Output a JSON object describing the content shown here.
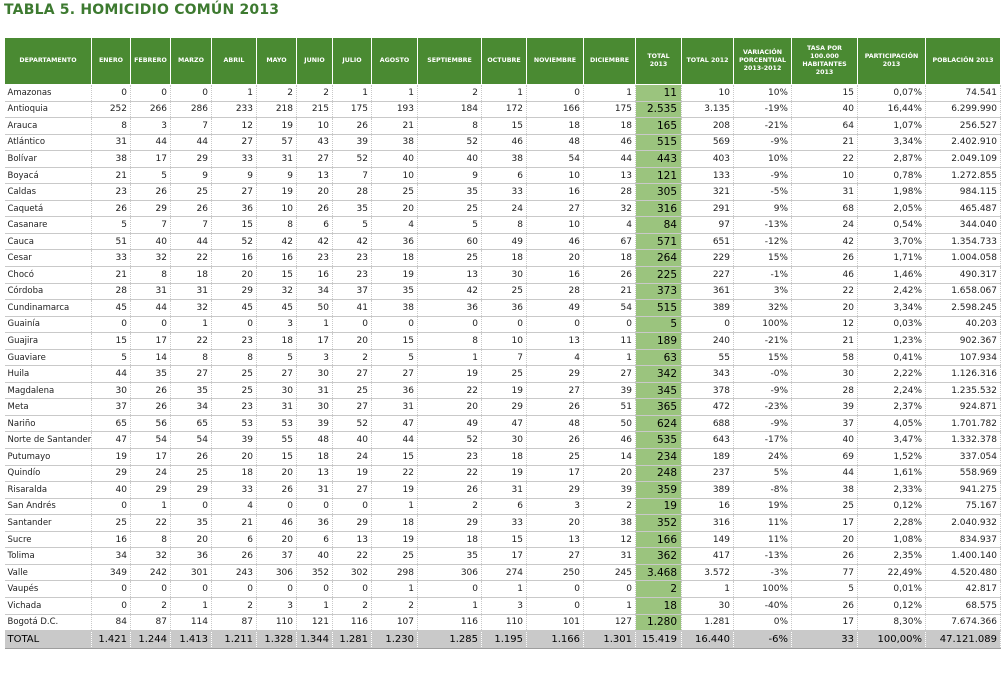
{
  "title": {
    "prefix": "TABLA 5.",
    "text": "HOMICIDIO COMÚN 2013"
  },
  "headers": [
    "DEPARTAMENTO",
    "ENERO",
    "FEBRERO",
    "MARZO",
    "ABRIL",
    "MAYO",
    "JUNIO",
    "JULIO",
    "AGOSTO",
    "SEPTIEMBRE",
    "OCTUBRE",
    "NOVIEMBRE",
    "DICIEMBRE",
    "TOTAL 2013",
    "TOTAL 2012",
    "VARIACIÓN PORCENTUAL 2013-2012",
    "TASA POR 100.000 HABITANTES 2013",
    "PARTICIPACIÓN 2013",
    "POBLACIÓN 2013"
  ],
  "rows": [
    [
      "Amazonas",
      "0",
      "0",
      "0",
      "1",
      "2",
      "2",
      "1",
      "1",
      "2",
      "1",
      "0",
      "1",
      "11",
      "10",
      "10%",
      "15",
      "0,07%",
      "74.541"
    ],
    [
      "Antioquia",
      "252",
      "266",
      "286",
      "233",
      "218",
      "215",
      "175",
      "193",
      "184",
      "172",
      "166",
      "175",
      "2.535",
      "3.135",
      "-19%",
      "40",
      "16,44%",
      "6.299.990"
    ],
    [
      "Arauca",
      "8",
      "3",
      "7",
      "12",
      "19",
      "10",
      "26",
      "21",
      "8",
      "15",
      "18",
      "18",
      "165",
      "208",
      "-21%",
      "64",
      "1,07%",
      "256.527"
    ],
    [
      "Atlántico",
      "31",
      "44",
      "44",
      "27",
      "57",
      "43",
      "39",
      "38",
      "52",
      "46",
      "48",
      "46",
      "515",
      "569",
      "-9%",
      "21",
      "3,34%",
      "2.402.910"
    ],
    [
      "Bolívar",
      "38",
      "17",
      "29",
      "33",
      "31",
      "27",
      "52",
      "40",
      "40",
      "38",
      "54",
      "44",
      "443",
      "403",
      "10%",
      "22",
      "2,87%",
      "2.049.109"
    ],
    [
      "Boyacá",
      "21",
      "5",
      "9",
      "9",
      "9",
      "13",
      "7",
      "10",
      "9",
      "6",
      "10",
      "13",
      "121",
      "133",
      "-9%",
      "10",
      "0,78%",
      "1.272.855"
    ],
    [
      "Caldas",
      "23",
      "26",
      "25",
      "27",
      "19",
      "20",
      "28",
      "25",
      "35",
      "33",
      "16",
      "28",
      "305",
      "321",
      "-5%",
      "31",
      "1,98%",
      "984.115"
    ],
    [
      "Caquetá",
      "26",
      "29",
      "26",
      "36",
      "10",
      "26",
      "35",
      "20",
      "25",
      "24",
      "27",
      "32",
      "316",
      "291",
      "9%",
      "68",
      "2,05%",
      "465.487"
    ],
    [
      "Casanare",
      "5",
      "7",
      "7",
      "15",
      "8",
      "6",
      "5",
      "4",
      "5",
      "8",
      "10",
      "4",
      "84",
      "97",
      "-13%",
      "24",
      "0,54%",
      "344.040"
    ],
    [
      "Cauca",
      "51",
      "40",
      "44",
      "52",
      "42",
      "42",
      "42",
      "36",
      "60",
      "49",
      "46",
      "67",
      "571",
      "651",
      "-12%",
      "42",
      "3,70%",
      "1.354.733"
    ],
    [
      "Cesar",
      "33",
      "32",
      "22",
      "16",
      "16",
      "23",
      "23",
      "18",
      "25",
      "18",
      "20",
      "18",
      "264",
      "229",
      "15%",
      "26",
      "1,71%",
      "1.004.058"
    ],
    [
      "Chocó",
      "21",
      "8",
      "18",
      "20",
      "15",
      "16",
      "23",
      "19",
      "13",
      "30",
      "16",
      "26",
      "225",
      "227",
      "-1%",
      "46",
      "1,46%",
      "490.317"
    ],
    [
      "Córdoba",
      "28",
      "31",
      "31",
      "29",
      "32",
      "34",
      "37",
      "35",
      "42",
      "25",
      "28",
      "21",
      "373",
      "361",
      "3%",
      "22",
      "2,42%",
      "1.658.067"
    ],
    [
      "Cundinamarca",
      "45",
      "44",
      "32",
      "45",
      "45",
      "50",
      "41",
      "38",
      "36",
      "36",
      "49",
      "54",
      "515",
      "389",
      "32%",
      "20",
      "3,34%",
      "2.598.245"
    ],
    [
      "Guainía",
      "0",
      "0",
      "1",
      "0",
      "3",
      "1",
      "0",
      "0",
      "0",
      "0",
      "0",
      "0",
      "5",
      "0",
      "100%",
      "12",
      "0,03%",
      "40.203"
    ],
    [
      "Guajira",
      "15",
      "17",
      "22",
      "23",
      "18",
      "17",
      "20",
      "15",
      "8",
      "10",
      "13",
      "11",
      "189",
      "240",
      "-21%",
      "21",
      "1,23%",
      "902.367"
    ],
    [
      "Guaviare",
      "5",
      "14",
      "8",
      "8",
      "5",
      "3",
      "2",
      "5",
      "1",
      "7",
      "4",
      "1",
      "63",
      "55",
      "15%",
      "58",
      "0,41%",
      "107.934"
    ],
    [
      "Huila",
      "44",
      "35",
      "27",
      "25",
      "27",
      "30",
      "27",
      "27",
      "19",
      "25",
      "29",
      "27",
      "342",
      "343",
      "-0%",
      "30",
      "2,22%",
      "1.126.316"
    ],
    [
      "Magdalena",
      "30",
      "26",
      "35",
      "25",
      "30",
      "31",
      "25",
      "36",
      "22",
      "19",
      "27",
      "39",
      "345",
      "378",
      "-9%",
      "28",
      "2,24%",
      "1.235.532"
    ],
    [
      "Meta",
      "37",
      "26",
      "34",
      "23",
      "31",
      "30",
      "27",
      "31",
      "20",
      "29",
      "26",
      "51",
      "365",
      "472",
      "-23%",
      "39",
      "2,37%",
      "924.871"
    ],
    [
      "Nariño",
      "65",
      "56",
      "65",
      "53",
      "53",
      "39",
      "52",
      "47",
      "49",
      "47",
      "48",
      "50",
      "624",
      "688",
      "-9%",
      "37",
      "4,05%",
      "1.701.782"
    ],
    [
      "Norte de Santander",
      "47",
      "54",
      "54",
      "39",
      "55",
      "48",
      "40",
      "44",
      "52",
      "30",
      "26",
      "46",
      "535",
      "643",
      "-17%",
      "40",
      "3,47%",
      "1.332.378"
    ],
    [
      "Putumayo",
      "19",
      "17",
      "26",
      "20",
      "15",
      "18",
      "24",
      "15",
      "23",
      "18",
      "25",
      "14",
      "234",
      "189",
      "24%",
      "69",
      "1,52%",
      "337.054"
    ],
    [
      "Quindío",
      "29",
      "24",
      "25",
      "18",
      "20",
      "13",
      "19",
      "22",
      "22",
      "19",
      "17",
      "20",
      "248",
      "237",
      "5%",
      "44",
      "1,61%",
      "558.969"
    ],
    [
      "Risaralda",
      "40",
      "29",
      "29",
      "33",
      "26",
      "31",
      "27",
      "19",
      "26",
      "31",
      "29",
      "39",
      "359",
      "389",
      "-8%",
      "38",
      "2,33%",
      "941.275"
    ],
    [
      "San Andrés",
      "0",
      "1",
      "0",
      "4",
      "0",
      "0",
      "0",
      "1",
      "2",
      "6",
      "3",
      "2",
      "19",
      "16",
      "19%",
      "25",
      "0,12%",
      "75.167"
    ],
    [
      "Santander",
      "25",
      "22",
      "35",
      "21",
      "46",
      "36",
      "29",
      "18",
      "29",
      "33",
      "20",
      "38",
      "352",
      "316",
      "11%",
      "17",
      "2,28%",
      "2.040.932"
    ],
    [
      "Sucre",
      "16",
      "8",
      "20",
      "6",
      "20",
      "6",
      "13",
      "19",
      "18",
      "15",
      "13",
      "12",
      "166",
      "149",
      "11%",
      "20",
      "1,08%",
      "834.937"
    ],
    [
      "Tolima",
      "34",
      "32",
      "36",
      "26",
      "37",
      "40",
      "22",
      "25",
      "35",
      "17",
      "27",
      "31",
      "362",
      "417",
      "-13%",
      "26",
      "2,35%",
      "1.400.140"
    ],
    [
      "Valle",
      "349",
      "242",
      "301",
      "243",
      "306",
      "352",
      "302",
      "298",
      "306",
      "274",
      "250",
      "245",
      "3.468",
      "3.572",
      "-3%",
      "77",
      "22,49%",
      "4.520.480"
    ],
    [
      "Vaupés",
      "0",
      "0",
      "0",
      "0",
      "0",
      "0",
      "0",
      "1",
      "0",
      "1",
      "0",
      "0",
      "2",
      "1",
      "100%",
      "5",
      "0,01%",
      "42.817"
    ],
    [
      "Vichada",
      "0",
      "2",
      "1",
      "2",
      "3",
      "1",
      "2",
      "2",
      "1",
      "3",
      "0",
      "1",
      "18",
      "30",
      "-40%",
      "26",
      "0,12%",
      "68.575"
    ],
    [
      "Bogotá D.C.",
      "84",
      "87",
      "114",
      "87",
      "110",
      "121",
      "116",
      "107",
      "116",
      "110",
      "101",
      "127",
      "1.280",
      "1.281",
      "0%",
      "17",
      "8,30%",
      "7.674.366"
    ]
  ],
  "total": [
    "TOTAL",
    "1.421",
    "1.244",
    "1.413",
    "1.211",
    "1.328",
    "1.344",
    "1.281",
    "1.230",
    "1.285",
    "1.195",
    "1.166",
    "1.301",
    "15.419",
    "16.440",
    "-6%",
    "33",
    "100,00%",
    "47.121.089"
  ]
}
